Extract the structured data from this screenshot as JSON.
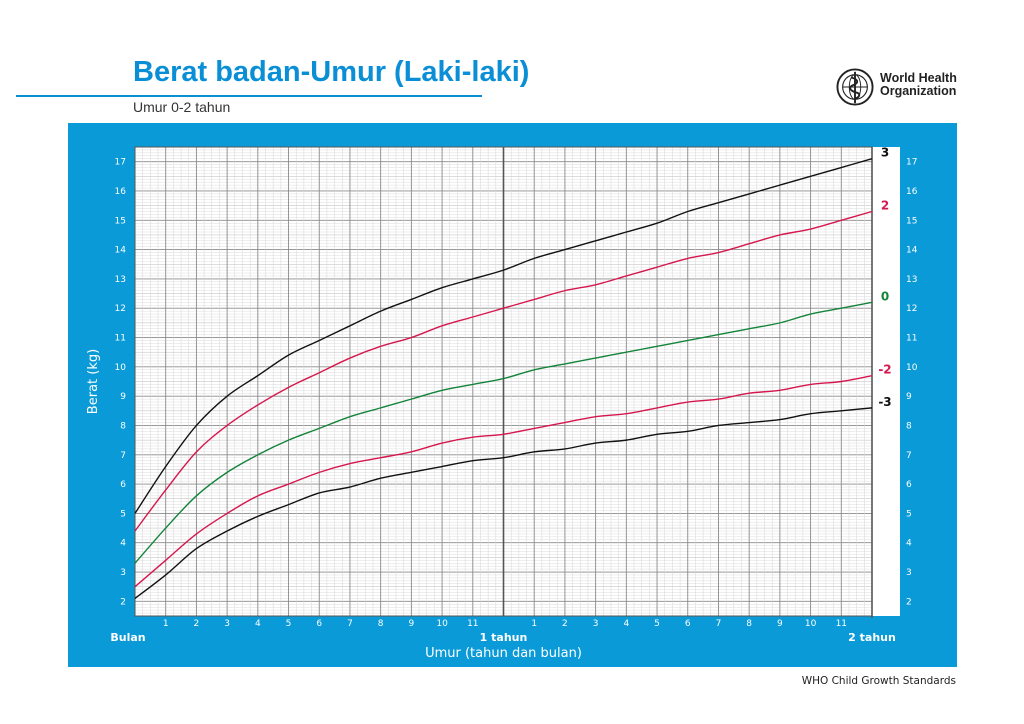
{
  "header": {
    "title": "Berat badan-Umur (Laki-laki)",
    "subtitle": "Umur 0-2 tahun"
  },
  "logo": {
    "icon": "who-emblem-icon",
    "line1": "World Health",
    "line2": "Organization"
  },
  "footer": {
    "text": "WHO Child Growth Standards"
  },
  "colors": {
    "brand_blue": "#0a9ad8",
    "title_blue": "#0a8fd6",
    "sd3": "#111111",
    "sd2": "#d6174e",
    "median": "#13843a"
  },
  "chart_data": {
    "type": "line",
    "title": "Berat badan-Umur (Laki-laki)",
    "subtitle": "Umur 0-2 tahun",
    "xlabel": "Umur (tahun dan bulan)",
    "ylabel": "Berat (kg)",
    "xlim": [
      0,
      24
    ],
    "ylim": [
      1.5,
      17.5
    ],
    "yticks": [
      2,
      3,
      4,
      5,
      6,
      7,
      8,
      9,
      10,
      11,
      12,
      13,
      14,
      15,
      16,
      17
    ],
    "x_tick_labels": [
      {
        "x": 0,
        "label": "Bulan"
      },
      {
        "x": 1,
        "label": "1"
      },
      {
        "x": 2,
        "label": "2"
      },
      {
        "x": 3,
        "label": "3"
      },
      {
        "x": 4,
        "label": "4"
      },
      {
        "x": 5,
        "label": "5"
      },
      {
        "x": 6,
        "label": "6"
      },
      {
        "x": 7,
        "label": "7"
      },
      {
        "x": 8,
        "label": "8"
      },
      {
        "x": 9,
        "label": "9"
      },
      {
        "x": 10,
        "label": "10"
      },
      {
        "x": 11,
        "label": "11"
      },
      {
        "x": 12,
        "label": "1 tahun"
      },
      {
        "x": 13,
        "label": "1"
      },
      {
        "x": 14,
        "label": "2"
      },
      {
        "x": 15,
        "label": "3"
      },
      {
        "x": 16,
        "label": "4"
      },
      {
        "x": 17,
        "label": "5"
      },
      {
        "x": 18,
        "label": "6"
      },
      {
        "x": 19,
        "label": "7"
      },
      {
        "x": 20,
        "label": "8"
      },
      {
        "x": 21,
        "label": "9"
      },
      {
        "x": 22,
        "label": "10"
      },
      {
        "x": 23,
        "label": "11"
      },
      {
        "x": 24,
        "label": "2 tahun"
      }
    ],
    "grid": true,
    "x": [
      0,
      1,
      2,
      3,
      4,
      5,
      6,
      7,
      8,
      9,
      10,
      11,
      12,
      13,
      14,
      15,
      16,
      17,
      18,
      19,
      20,
      21,
      22,
      23,
      24
    ],
    "series": [
      {
        "name": "3",
        "color": "#111111",
        "values": [
          5.0,
          6.6,
          8.0,
          9.0,
          9.7,
          10.4,
          10.9,
          11.4,
          11.9,
          12.3,
          12.7,
          13.0,
          13.3,
          13.7,
          14.0,
          14.3,
          14.6,
          14.9,
          15.3,
          15.6,
          15.9,
          16.2,
          16.5,
          16.8,
          17.1
        ]
      },
      {
        "name": "2",
        "color": "#d6174e",
        "values": [
          4.4,
          5.8,
          7.1,
          8.0,
          8.7,
          9.3,
          9.8,
          10.3,
          10.7,
          11.0,
          11.4,
          11.7,
          12.0,
          12.3,
          12.6,
          12.8,
          13.1,
          13.4,
          13.7,
          13.9,
          14.2,
          14.5,
          14.7,
          15.0,
          15.3
        ]
      },
      {
        "name": "0",
        "color": "#13843a",
        "values": [
          3.3,
          4.5,
          5.6,
          6.4,
          7.0,
          7.5,
          7.9,
          8.3,
          8.6,
          8.9,
          9.2,
          9.4,
          9.6,
          9.9,
          10.1,
          10.3,
          10.5,
          10.7,
          10.9,
          11.1,
          11.3,
          11.5,
          11.8,
          12.0,
          12.2
        ]
      },
      {
        "name": "-2",
        "color": "#d6174e",
        "values": [
          2.5,
          3.4,
          4.3,
          5.0,
          5.6,
          6.0,
          6.4,
          6.7,
          6.9,
          7.1,
          7.4,
          7.6,
          7.7,
          7.9,
          8.1,
          8.3,
          8.4,
          8.6,
          8.8,
          8.9,
          9.1,
          9.2,
          9.4,
          9.5,
          9.7
        ]
      },
      {
        "name": "-3",
        "color": "#111111",
        "values": [
          2.1,
          2.9,
          3.8,
          4.4,
          4.9,
          5.3,
          5.7,
          5.9,
          6.2,
          6.4,
          6.6,
          6.8,
          6.9,
          7.1,
          7.2,
          7.4,
          7.5,
          7.7,
          7.8,
          8.0,
          8.1,
          8.2,
          8.4,
          8.5,
          8.6
        ]
      }
    ]
  }
}
